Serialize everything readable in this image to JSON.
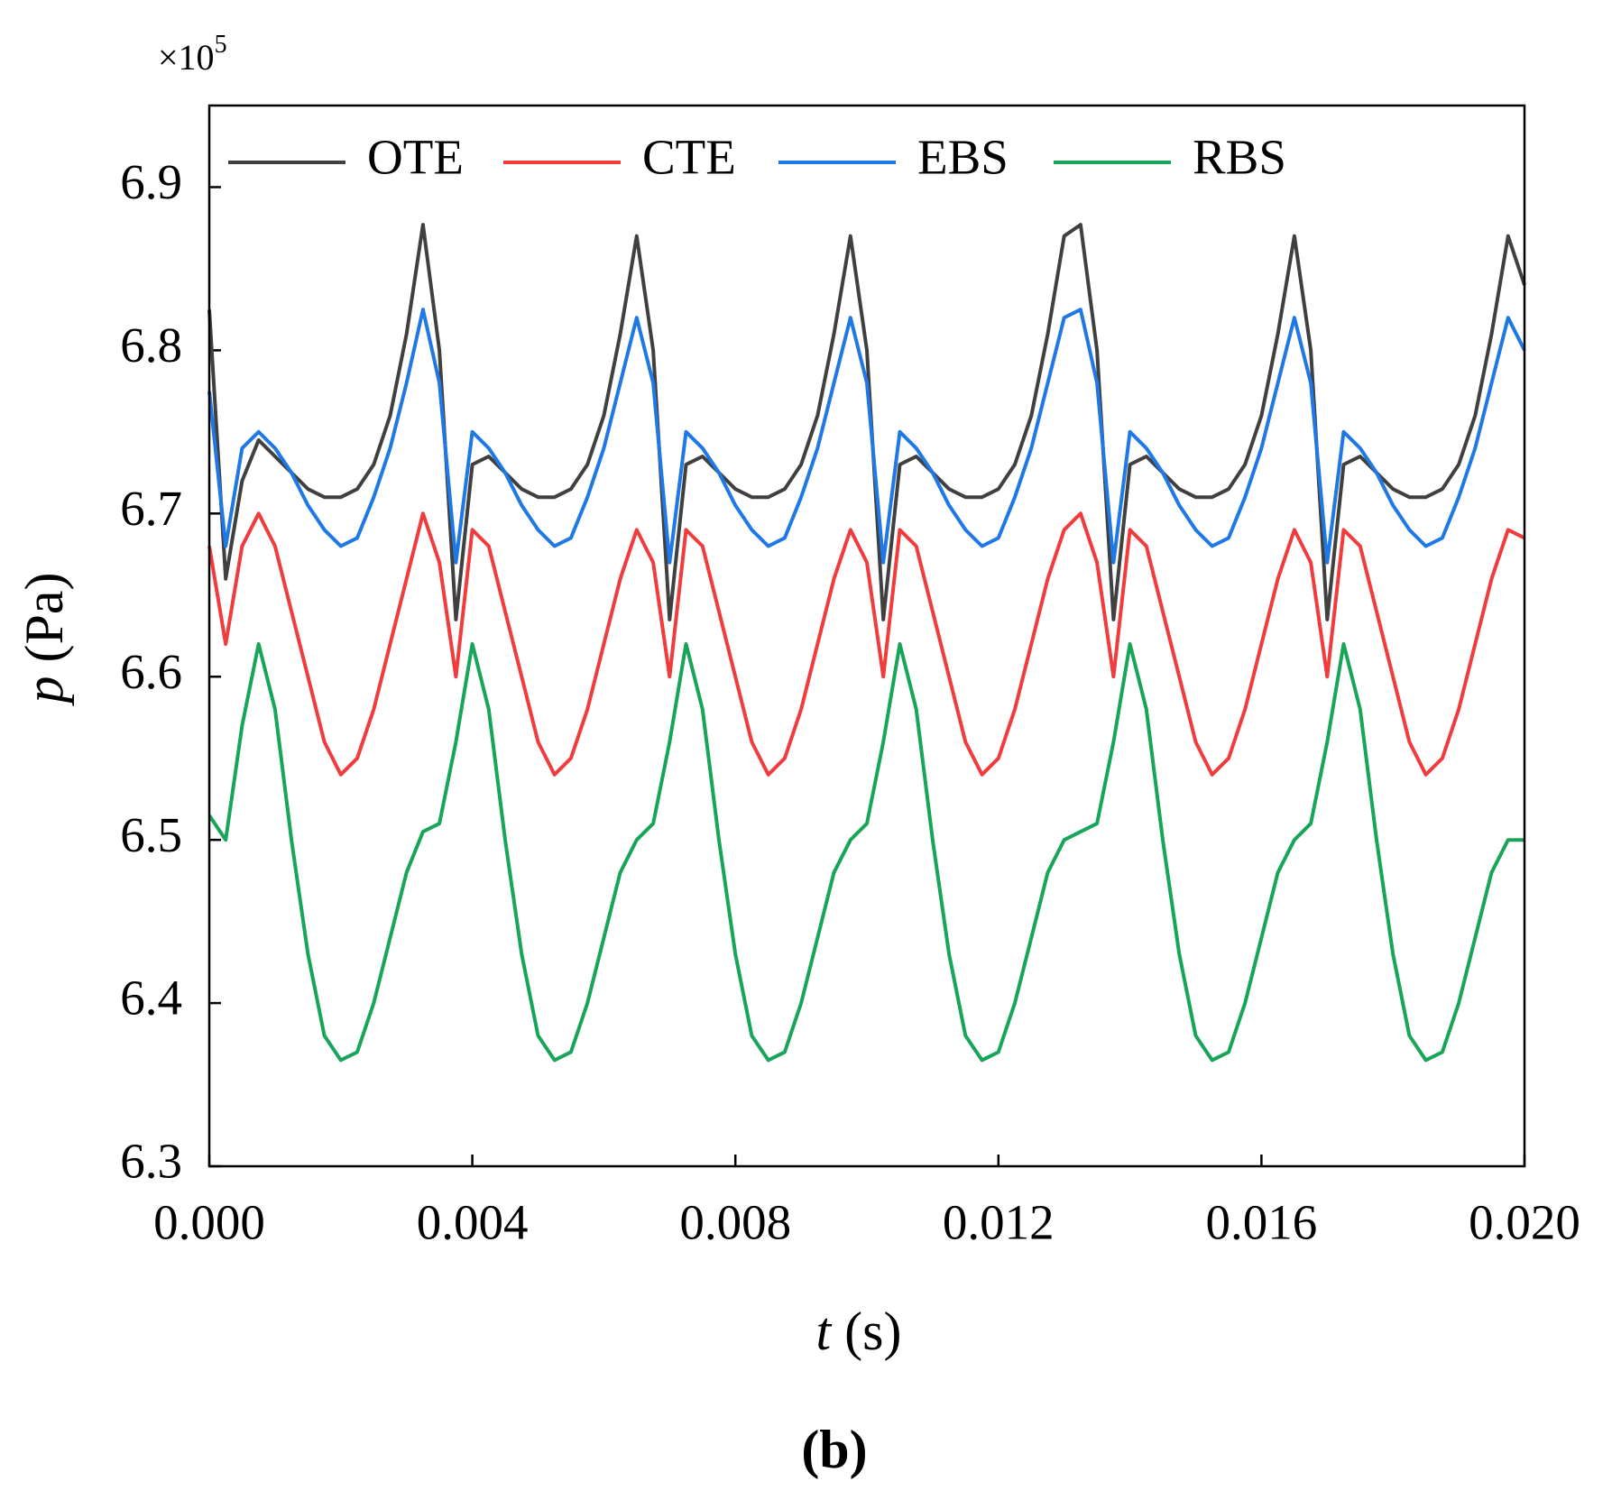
{
  "chart_data": {
    "type": "line",
    "title": "(b)",
    "multiplier": {
      "base": "×10",
      "exponent": "5"
    },
    "x_label": {
      "symbol": "t",
      "unit": "(s)"
    },
    "y_label": {
      "symbol": "p",
      "unit": "(Pa)"
    },
    "legend": "upper left",
    "xlim": [
      0,
      0.02
    ],
    "ylim": [
      6.3,
      6.95
    ],
    "xticks": [
      {
        "value": 0,
        "label": "0.000"
      },
      {
        "value": 0.004,
        "label": "0.004"
      },
      {
        "value": 0.008,
        "label": "0.008"
      },
      {
        "value": 0.012,
        "label": "0.012"
      },
      {
        "value": 0.016,
        "label": "0.016"
      },
      {
        "value": 0.02,
        "label": "0.020"
      }
    ],
    "yticks": [
      6.3,
      6.4,
      6.5,
      6.6,
      6.7,
      6.8,
      6.9
    ],
    "x": [
      0,
      0.00025,
      0.0005,
      0.00075,
      0.001,
      0.00125,
      0.0015,
      0.00175,
      0.002,
      0.00225,
      0.0025,
      0.00275,
      0.003,
      0.00325,
      0.0035,
      0.00375,
      0.004,
      0.00425,
      0.0045,
      0.00475,
      0.005,
      0.00525,
      0.0055,
      0.00575,
      0.006,
      0.00625,
      0.0065,
      0.00675,
      0.007,
      0.00725,
      0.0075,
      0.00775,
      0.008,
      0.00825,
      0.0085,
      0.00875,
      0.009,
      0.00925,
      0.0095,
      0.00975,
      0.01,
      0.01025,
      0.0105,
      0.01075,
      0.011,
      0.01125,
      0.0115,
      0.01175,
      0.012,
      0.01225,
      0.0125,
      0.01275,
      0.013,
      0.01325,
      0.0135,
      0.01375,
      0.014,
      0.01425,
      0.0145,
      0.01475,
      0.015,
      0.01525,
      0.0155,
      0.01575,
      0.016,
      0.01625,
      0.0165,
      0.01675,
      0.017,
      0.01725,
      0.0175,
      0.01775,
      0.018,
      0.01825,
      0.0185,
      0.01875,
      0.019,
      0.01925,
      0.0195,
      0.01975,
      0.02
    ],
    "series": [
      {
        "name": "OTE",
        "color": "#404040",
        "values": [
          6.825,
          6.66,
          6.72,
          6.745,
          6.735,
          6.725,
          6.715,
          6.71,
          6.71,
          6.715,
          6.73,
          6.76,
          6.81,
          6.877,
          6.8,
          6.635,
          6.73,
          6.735,
          6.725,
          6.715,
          6.71,
          6.71,
          6.715,
          6.73,
          6.76,
          6.81,
          6.87,
          6.8,
          6.635,
          6.73,
          6.735,
          6.725,
          6.715,
          6.71,
          6.71,
          6.715,
          6.73,
          6.76,
          6.81,
          6.87,
          6.8,
          6.635,
          6.73,
          6.735,
          6.725,
          6.715,
          6.71,
          6.71,
          6.715,
          6.73,
          6.76,
          6.81,
          6.87,
          6.877,
          6.8,
          6.635,
          6.73,
          6.735,
          6.725,
          6.715,
          6.71,
          6.71,
          6.715,
          6.73,
          6.76,
          6.81,
          6.87,
          6.8,
          6.635,
          6.73,
          6.735,
          6.725,
          6.715,
          6.71,
          6.71,
          6.715,
          6.73,
          6.76,
          6.81,
          6.87,
          6.84
        ]
      },
      {
        "name": "CTE",
        "color": "#f03c3c",
        "values": [
          6.68,
          6.62,
          6.68,
          6.7,
          6.68,
          6.64,
          6.6,
          6.56,
          6.54,
          6.55,
          6.58,
          6.62,
          6.66,
          6.7,
          6.67,
          6.6,
          6.69,
          6.68,
          6.64,
          6.6,
          6.56,
          6.54,
          6.55,
          6.58,
          6.62,
          6.66,
          6.69,
          6.67,
          6.6,
          6.69,
          6.68,
          6.64,
          6.6,
          6.56,
          6.54,
          6.55,
          6.58,
          6.62,
          6.66,
          6.69,
          6.67,
          6.6,
          6.69,
          6.68,
          6.64,
          6.6,
          6.56,
          6.54,
          6.55,
          6.58,
          6.62,
          6.66,
          6.69,
          6.7,
          6.67,
          6.6,
          6.69,
          6.68,
          6.64,
          6.6,
          6.56,
          6.54,
          6.55,
          6.58,
          6.62,
          6.66,
          6.69,
          6.67,
          6.6,
          6.69,
          6.68,
          6.64,
          6.6,
          6.56,
          6.54,
          6.55,
          6.58,
          6.62,
          6.66,
          6.69,
          6.685
        ]
      },
      {
        "name": "EBS",
        "color": "#1e78e6",
        "values": [
          6.775,
          6.68,
          6.74,
          6.75,
          6.74,
          6.725,
          6.705,
          6.69,
          6.68,
          6.685,
          6.71,
          6.74,
          6.78,
          6.825,
          6.78,
          6.67,
          6.75,
          6.74,
          6.725,
          6.705,
          6.69,
          6.68,
          6.685,
          6.71,
          6.74,
          6.78,
          6.82,
          6.78,
          6.67,
          6.75,
          6.74,
          6.725,
          6.705,
          6.69,
          6.68,
          6.685,
          6.71,
          6.74,
          6.78,
          6.82,
          6.78,
          6.67,
          6.75,
          6.74,
          6.725,
          6.705,
          6.69,
          6.68,
          6.685,
          6.71,
          6.74,
          6.78,
          6.82,
          6.825,
          6.78,
          6.67,
          6.75,
          6.74,
          6.725,
          6.705,
          6.69,
          6.68,
          6.685,
          6.71,
          6.74,
          6.78,
          6.82,
          6.78,
          6.67,
          6.75,
          6.74,
          6.725,
          6.705,
          6.69,
          6.68,
          6.685,
          6.71,
          6.74,
          6.78,
          6.82,
          6.8
        ]
      },
      {
        "name": "RBS",
        "color": "#18a55a",
        "values": [
          6.515,
          6.5,
          6.57,
          6.62,
          6.58,
          6.5,
          6.43,
          6.38,
          6.365,
          6.37,
          6.4,
          6.44,
          6.48,
          6.505,
          6.51,
          6.56,
          6.62,
          6.58,
          6.5,
          6.43,
          6.38,
          6.365,
          6.37,
          6.4,
          6.44,
          6.48,
          6.5,
          6.51,
          6.56,
          6.62,
          6.58,
          6.5,
          6.43,
          6.38,
          6.365,
          6.37,
          6.4,
          6.44,
          6.48,
          6.5,
          6.51,
          6.56,
          6.62,
          6.58,
          6.5,
          6.43,
          6.38,
          6.365,
          6.37,
          6.4,
          6.44,
          6.48,
          6.5,
          6.505,
          6.51,
          6.56,
          6.62,
          6.58,
          6.5,
          6.43,
          6.38,
          6.365,
          6.37,
          6.4,
          6.44,
          6.48,
          6.5,
          6.51,
          6.56,
          6.62,
          6.58,
          6.5,
          6.43,
          6.38,
          6.365,
          6.37,
          6.4,
          6.44,
          6.48,
          6.5,
          6.5
        ]
      }
    ]
  }
}
